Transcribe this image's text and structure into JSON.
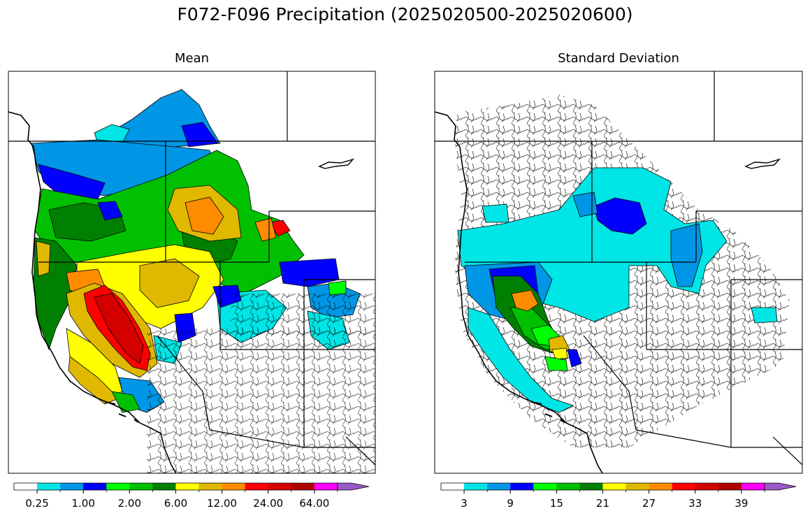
{
  "figure": {
    "title": "F072-F096 Precipitation (2025020500-2025020600)"
  },
  "panels": [
    {
      "title": "Mean",
      "colorbar": {
        "colors": [
          "#ffffff",
          "#00e5e5",
          "#0096e6",
          "#0000ff",
          "#00ff00",
          "#00c000",
          "#008000",
          "#ffff00",
          "#e0b800",
          "#ff8c00",
          "#ff0000",
          "#d40000",
          "#b00000",
          "#ff00ff",
          "#9b59c8"
        ],
        "tick_labels": [
          "0.25",
          "1.00",
          "2.00",
          "6.00",
          "12.00",
          "24.00",
          "64.00"
        ],
        "extend": "max"
      }
    },
    {
      "title": "Standard Deviation",
      "colorbar": {
        "colors": [
          "#ffffff",
          "#00e5e5",
          "#0096e6",
          "#0000ff",
          "#00ff00",
          "#00c000",
          "#008000",
          "#ffff00",
          "#e0b800",
          "#ff8c00",
          "#ff0000",
          "#d40000",
          "#b00000",
          "#ff00ff",
          "#9b59c8"
        ],
        "tick_labels": [
          "3",
          "9",
          "15",
          "21",
          "27",
          "33",
          "39"
        ],
        "extend": "max"
      }
    }
  ]
}
